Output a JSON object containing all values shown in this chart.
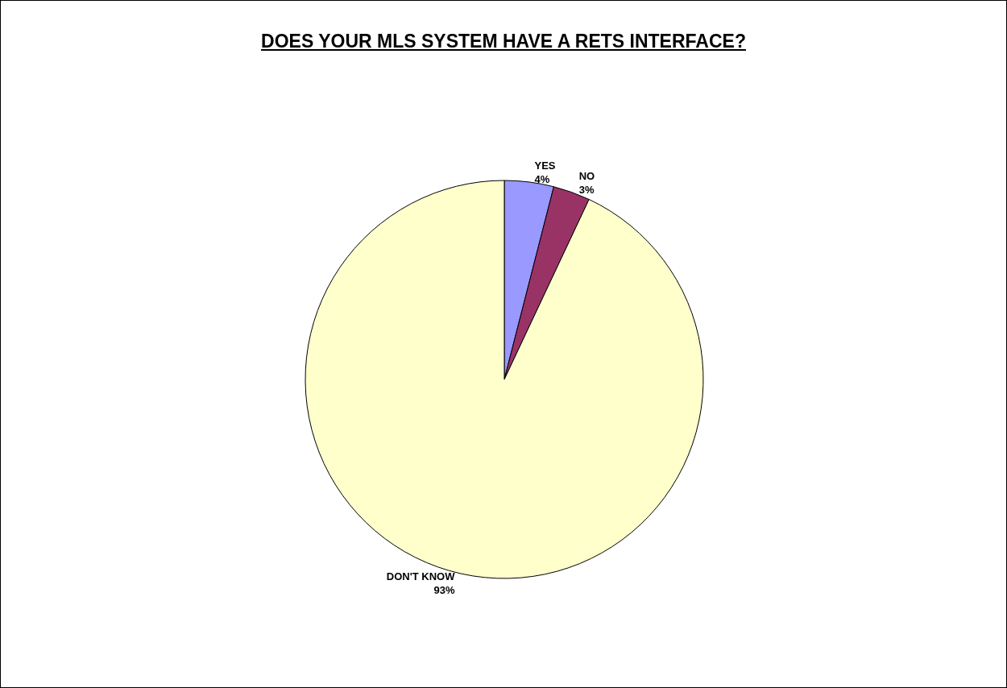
{
  "chart_data": {
    "type": "pie",
    "title": "DOES YOUR MLS SYSTEM HAVE A RETS INTERFACE?",
    "categories": [
      "YES",
      "NO",
      "DON'T KNOW"
    ],
    "values": [
      4,
      3,
      93
    ],
    "value_labels": [
      "4%",
      "3%",
      "93%"
    ],
    "colors": [
      "#9999ff",
      "#993366",
      "#ffffcc"
    ],
    "legend": false
  }
}
